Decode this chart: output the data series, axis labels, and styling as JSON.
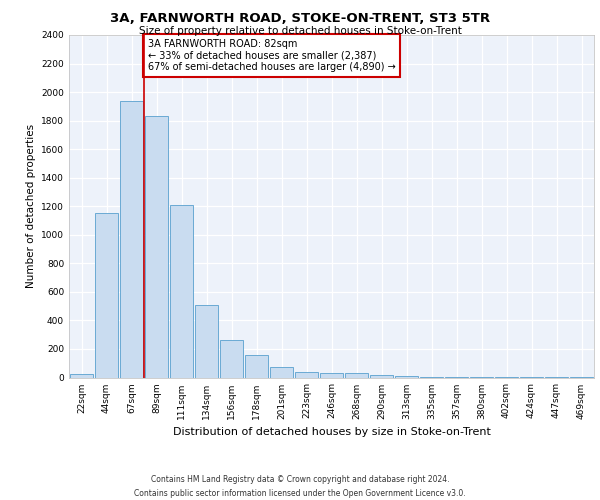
{
  "title": "3A, FARNWORTH ROAD, STOKE-ON-TRENT, ST3 5TR",
  "subtitle": "Size of property relative to detached houses in Stoke-on-Trent",
  "xlabel": "Distribution of detached houses by size in Stoke-on-Trent",
  "ylabel": "Number of detached properties",
  "categories": [
    "22sqm",
    "44sqm",
    "67sqm",
    "89sqm",
    "111sqm",
    "134sqm",
    "156sqm",
    "178sqm",
    "201sqm",
    "223sqm",
    "246sqm",
    "268sqm",
    "290sqm",
    "313sqm",
    "335sqm",
    "357sqm",
    "380sqm",
    "402sqm",
    "424sqm",
    "447sqm",
    "469sqm"
  ],
  "values": [
    25,
    1150,
    1940,
    1830,
    1210,
    510,
    265,
    155,
    75,
    42,
    32,
    30,
    15,
    8,
    5,
    3,
    3,
    2,
    2,
    2,
    5
  ],
  "bar_color": "#c9dcf0",
  "bar_edge_color": "#6aaad4",
  "vline_color": "#cc0000",
  "vline_x": 2.5,
  "annotation_text": "3A FARNWORTH ROAD: 82sqm\n← 33% of detached houses are smaller (2,387)\n67% of semi-detached houses are larger (4,890) →",
  "annotation_box_color": "#ffffff",
  "annotation_box_edge_color": "#cc0000",
  "ylim": [
    0,
    2400
  ],
  "yticks": [
    0,
    200,
    400,
    600,
    800,
    1000,
    1200,
    1400,
    1600,
    1800,
    2000,
    2200,
    2400
  ],
  "footer_line1": "Contains HM Land Registry data © Crown copyright and database right 2024.",
  "footer_line2": "Contains public sector information licensed under the Open Government Licence v3.0.",
  "background_color": "#edf2fa",
  "fig_background_color": "#ffffff",
  "title_fontsize": 9.5,
  "subtitle_fontsize": 7.5,
  "xlabel_fontsize": 8,
  "ylabel_fontsize": 7.5,
  "tick_fontsize": 6.5,
  "annotation_fontsize": 7,
  "footer_fontsize": 5.5
}
